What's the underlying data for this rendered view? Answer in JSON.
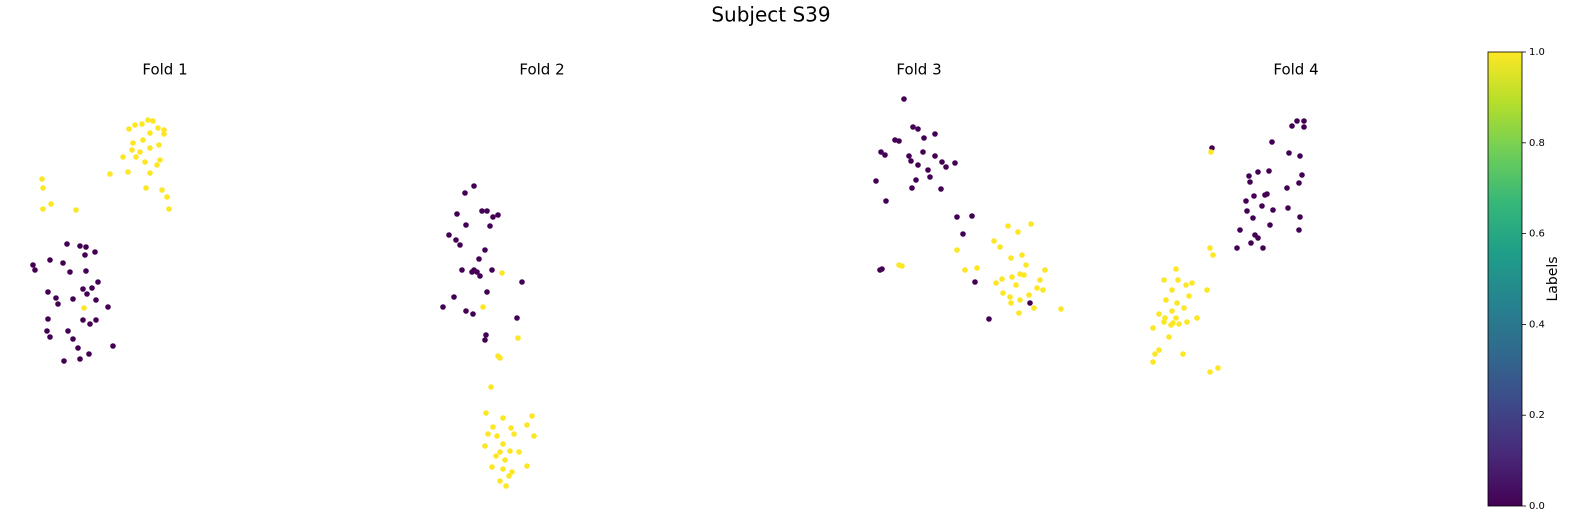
{
  "title": "Subject S39",
  "colorbar": {
    "label": "Labels",
    "lim": [
      0,
      1
    ],
    "ticks": [
      {
        "value": 0,
        "label": "0.0"
      },
      {
        "value": 0.2,
        "label": "0.2"
      },
      {
        "value": 0.4,
        "label": "0.4"
      },
      {
        "value": 0.6,
        "label": "0.6"
      },
      {
        "value": 0.8,
        "label": "0.8"
      },
      {
        "value": 1,
        "label": "1.0"
      }
    ],
    "colors": [
      "#440154",
      "#482878",
      "#3e4989",
      "#31688e",
      "#26828e",
      "#1f9e89",
      "#35b779",
      "#6ece58",
      "#b5de2b",
      "#fde725"
    ]
  },
  "chart_data": [
    {
      "type": "scatter",
      "title": "Fold 1",
      "xlim": [
        15,
        315
      ],
      "ylim": [
        505,
        85
      ],
      "x": [
        129,
        135,
        142,
        148,
        153,
        158,
        164,
        164,
        150,
        143,
        133,
        159,
        150,
        140,
        132,
        123,
        136,
        145,
        160,
        157,
        128,
        150,
        110,
        42,
        43,
        51,
        43,
        76,
        146,
        162,
        167,
        169,
        67,
        80,
        86,
        95,
        85,
        50,
        63,
        33,
        35,
        70,
        86,
        98,
        92,
        83,
        87,
        48,
        56,
        73,
        96,
        108,
        58,
        48,
        83,
        96,
        90,
        68,
        47,
        50,
        73,
        78,
        89,
        113,
        64,
        80,
        84
      ],
      "y": [
        129,
        125,
        124,
        120,
        121,
        128,
        130,
        134,
        133,
        140,
        143,
        145,
        148,
        152,
        150,
        157,
        157,
        162,
        160,
        165,
        172,
        173,
        174,
        179,
        188,
        204,
        209,
        210,
        188,
        190,
        197,
        209,
        244,
        246,
        247,
        252,
        255,
        260,
        263,
        265,
        270,
        272,
        271,
        282,
        288,
        289,
        294,
        292,
        298,
        299,
        300,
        307,
        304,
        319,
        320,
        320,
        324,
        331,
        331,
        337,
        339,
        348,
        354,
        346,
        361,
        359,
        308
      ],
      "c": [
        1,
        1,
        1,
        1,
        1,
        1,
        1,
        1,
        1,
        1,
        1,
        1,
        1,
        1,
        1,
        1,
        1,
        1,
        1,
        1,
        1,
        1,
        1,
        1,
        1,
        1,
        1,
        1,
        1,
        1,
        1,
        1,
        0,
        0,
        0,
        0,
        0,
        0,
        0,
        0,
        0,
        0,
        0,
        0,
        0,
        0,
        0,
        0,
        0,
        0,
        0,
        0,
        0,
        0,
        0,
        0,
        0,
        0,
        0,
        0,
        0,
        0,
        0,
        0,
        0,
        0,
        1
      ]
    },
    {
      "type": "scatter",
      "title": "Fold 2",
      "xlim": [
        392,
        692
      ],
      "ylim": [
        505,
        85
      ],
      "x": [
        474,
        465,
        482,
        487,
        457,
        493,
        498,
        466,
        490,
        449,
        456,
        460,
        485,
        479,
        474,
        477,
        480,
        472,
        462,
        492,
        522,
        454,
        487,
        443,
        466,
        473,
        517,
        486,
        485,
        502,
        483,
        518,
        498,
        500,
        491,
        486,
        503,
        532,
        493,
        511,
        527,
        488,
        497,
        514,
        534,
        503,
        485,
        510,
        519,
        500,
        496,
        505,
        492,
        527,
        503,
        512,
        509,
        500,
        506
      ],
      "y": [
        186,
        193,
        211,
        211,
        214,
        217,
        215,
        225,
        226,
        235,
        240,
        245,
        250,
        259,
        270,
        272,
        276,
        272,
        270,
        270,
        282,
        297,
        292,
        307,
        311,
        314,
        318,
        335,
        340,
        273,
        307,
        338,
        356,
        358,
        387,
        413,
        418,
        416,
        427,
        428,
        425,
        434,
        436,
        434,
        436,
        444,
        446,
        451,
        452,
        452,
        456,
        460,
        467,
        466,
        469,
        472,
        476,
        481,
        486
      ],
      "c": [
        0,
        0,
        0,
        0,
        0,
        0,
        0,
        0,
        0,
        0,
        0,
        0,
        0,
        0,
        0,
        0,
        0,
        0,
        0,
        0,
        0,
        0,
        0,
        0,
        0,
        0,
        0,
        0,
        0,
        1,
        1,
        1,
        1,
        1,
        1,
        1,
        1,
        1,
        1,
        1,
        1,
        1,
        1,
        1,
        1,
        1,
        1,
        1,
        1,
        1,
        1,
        1,
        1,
        1,
        1,
        1,
        1,
        1,
        1
      ]
    },
    {
      "type": "scatter",
      "title": "Fold 3",
      "xlim": [
        769,
        1069
      ],
      "ylim": [
        505,
        85
      ],
      "x": [
        904,
        913,
        918,
        935,
        881,
        895,
        899,
        924,
        909,
        885,
        911,
        923,
        935,
        942,
        946,
        955,
        918,
        928,
        930,
        916,
        876,
        912,
        941,
        886,
        957,
        972,
        963,
        880,
        882,
        975,
        989,
        1030,
        899,
        902,
        1008,
        1031,
        994,
        1018,
        1000,
        1022,
        957,
        1011,
        965,
        977,
        1026,
        1045,
        1012,
        1020,
        1024,
        1002,
        1040,
        996,
        1016,
        1003,
        1037,
        1043,
        1010,
        1029,
        1020,
        1034,
        1019,
        1061,
        1011
      ],
      "y": [
        99,
        127,
        129,
        134,
        152,
        140,
        141,
        138,
        156,
        155,
        161,
        152,
        156,
        162,
        167,
        163,
        165,
        170,
        177,
        180,
        181,
        188,
        189,
        201,
        217,
        216,
        234,
        270,
        269,
        282,
        319,
        303,
        265,
        266,
        226,
        224,
        241,
        232,
        247,
        255,
        250,
        258,
        270,
        268,
        265,
        270,
        277,
        274,
        275,
        279,
        280,
        283,
        285,
        293,
        288,
        290,
        297,
        295,
        300,
        308,
        313,
        309,
        303
      ],
      "c": [
        0,
        0,
        0,
        0,
        0,
        0,
        0,
        0,
        0,
        0,
        0,
        0,
        0,
        0,
        0,
        0,
        0,
        0,
        0,
        0,
        0,
        0,
        0,
        0,
        0,
        0,
        0,
        0,
        0,
        0,
        0,
        0,
        1,
        1,
        1,
        1,
        1,
        1,
        1,
        1,
        1,
        1,
        1,
        1,
        1,
        1,
        1,
        1,
        1,
        1,
        1,
        1,
        1,
        1,
        1,
        1,
        1,
        1,
        1,
        1,
        1,
        1,
        1
      ]
    },
    {
      "type": "scatter",
      "title": "Fold 4",
      "xlim": [
        1146,
        1446
      ],
      "ylim": [
        505,
        85
      ],
      "x": [
        1297,
        1304,
        1304,
        1292,
        1272,
        1212,
        1289,
        1300,
        1269,
        1258,
        1249,
        1250,
        1302,
        1287,
        1299,
        1267,
        1254,
        1265,
        1246,
        1262,
        1247,
        1273,
        1288,
        1300,
        1253,
        1270,
        1240,
        1255,
        1258,
        1251,
        1299,
        1263,
        1237,
        1211,
        1210,
        1213,
        1176,
        1164,
        1178,
        1192,
        1172,
        1186,
        1189,
        1207,
        1166,
        1177,
        1184,
        1172,
        1159,
        1165,
        1176,
        1164,
        1173,
        1197,
        1171,
        1179,
        1187,
        1153,
        1169,
        1159,
        1155,
        1183,
        1153,
        1210,
        1218
      ],
      "y": [
        121,
        121,
        127,
        126,
        142,
        148,
        153,
        156,
        171,
        172,
        176,
        182,
        175,
        188,
        183,
        194,
        196,
        195,
        201,
        206,
        211,
        210,
        208,
        217,
        218,
        225,
        230,
        235,
        238,
        243,
        230,
        248,
        248,
        152,
        248,
        255,
        269,
        280,
        280,
        283,
        290,
        285,
        296,
        290,
        300,
        303,
        308,
        311,
        314,
        318,
        318,
        322,
        323,
        318,
        325,
        324,
        322,
        328,
        337,
        350,
        354,
        354,
        362,
        372,
        368
      ],
      "c": [
        0,
        0,
        0,
        0,
        0,
        0,
        0,
        0,
        0,
        0,
        0,
        0,
        0,
        0,
        0,
        0,
        0,
        0,
        0,
        0,
        0,
        0,
        0,
        0,
        0,
        0,
        0,
        0,
        0,
        0,
        0,
        0,
        0,
        1,
        1,
        1,
        1,
        1,
        1,
        1,
        1,
        1,
        1,
        1,
        1,
        1,
        1,
        1,
        1,
        1,
        1,
        1,
        1,
        1,
        1,
        1,
        1,
        1,
        1,
        1,
        1,
        1,
        1,
        1,
        1
      ]
    }
  ]
}
